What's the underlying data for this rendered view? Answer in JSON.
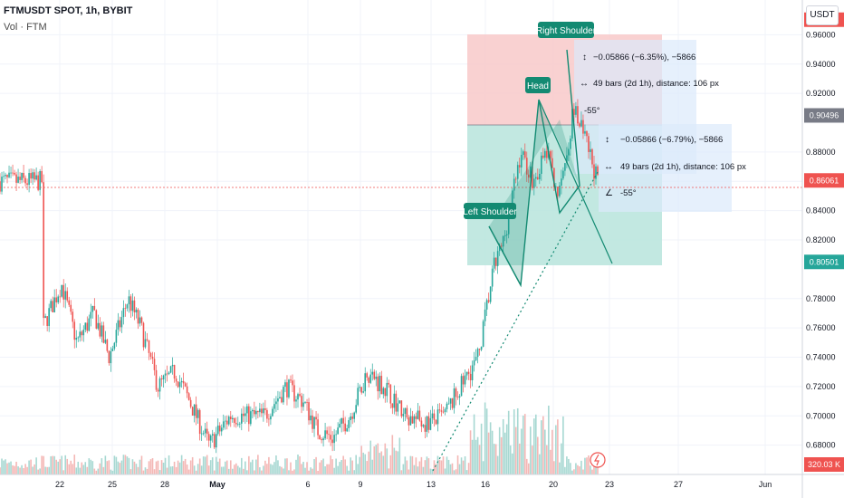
{
  "header": {
    "symbol": "FTMUSDT SPOT, 1h, BYBIT",
    "indicator": "Vol · FTM"
  },
  "axis_unit": "USDT",
  "colors": {
    "up": "#26a69a",
    "down": "#ef5350",
    "pattern": "#138a72",
    "tp": "#b7e4dc",
    "sl": "#f8c9c9",
    "measure": "#dbeafb"
  },
  "pattern_labels": {
    "left": "Left Shoulder",
    "head": "Head",
    "right": "Right Shoulder"
  },
  "measures": [
    {
      "price": "−0.05866 (−6.35%), −5866",
      "bars": "49 bars (2d 1h), distance: 106 px",
      "angle": "-55°"
    },
    {
      "price": "−0.05866 (−6.79%), −5866",
      "bars": "49 bars (2d 1h), distance: 106 px",
      "angle": "-55°"
    }
  ],
  "alert_icon": "alert-clock-icon",
  "chart_data": {
    "type": "candlestick",
    "title": "FTMUSDT SPOT, 1h, BYBIT",
    "y_axis": {
      "min": 0.66,
      "max": 0.98,
      "ticks": [
        "0.96000",
        "0.94000",
        "0.92000",
        "0.88000",
        "0.86000",
        "0.84000",
        "0.82000",
        "0.78000",
        "0.76000",
        "0.74000",
        "0.72000",
        "0.70000",
        "0.68000"
      ]
    },
    "x_axis": {
      "ticks": [
        "22",
        "25",
        "28",
        "May",
        "6",
        "9",
        "13",
        "16",
        "20",
        "23",
        "27",
        "Jun"
      ]
    },
    "price_tags": [
      {
        "label": "0.97028",
        "value": 0.97028,
        "color": "#ef5350"
      },
      {
        "label": "0.90496",
        "value": 0.90496,
        "color": "#787b86"
      },
      {
        "label": "0.86061",
        "value": 0.86061,
        "color": "#ef5350"
      },
      {
        "label": "0.80501",
        "value": 0.80501,
        "color": "#26a69a"
      }
    ],
    "volume_tag": "320.03 K",
    "close_line": 0.86061,
    "path": [
      [
        0.7,
        0.72
      ],
      [
        0.05,
        0.76
      ],
      [
        0.072,
        0.79
      ],
      [
        0.09,
        0.75
      ],
      [
        0.11,
        0.77
      ],
      [
        0.128,
        0.74
      ],
      [
        0.15,
        0.78
      ],
      [
        0.165,
        0.76
      ],
      [
        0.185,
        0.72
      ],
      [
        0.205,
        0.73
      ],
      [
        0.222,
        0.71
      ],
      [
        0.245,
        0.68
      ],
      [
        0.27,
        0.7
      ],
      [
        0.29,
        0.7
      ],
      [
        0.31,
        0.7
      ],
      [
        0.335,
        0.72
      ],
      [
        0.355,
        0.71
      ],
      [
        0.372,
        0.69
      ],
      [
        0.39,
        0.685
      ],
      [
        0.41,
        0.7
      ],
      [
        0.43,
        0.73
      ],
      [
        0.45,
        0.72
      ],
      [
        0.475,
        0.7
      ],
      [
        0.5,
        0.695
      ],
      [
        0.52,
        0.7
      ],
      [
        0.56,
        0.74
      ],
      [
        0.578,
        0.8
      ],
      [
        0.59,
        0.82
      ],
      [
        0.61,
        0.88
      ],
      [
        0.625,
        0.86
      ],
      [
        0.64,
        0.88
      ],
      [
        0.655,
        0.85
      ],
      [
        0.672,
        0.91
      ],
      [
        0.69,
        0.88
      ],
      [
        0.7,
        0.86
      ]
    ]
  }
}
